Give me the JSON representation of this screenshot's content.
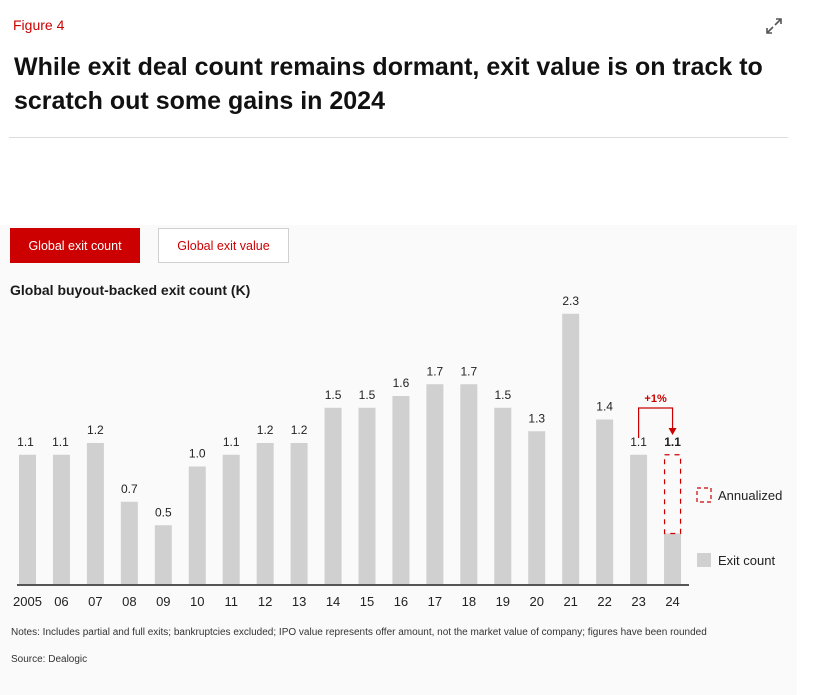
{
  "figure_label": "Figure 4",
  "title": "While exit deal count remains dormant, exit value is on track to scratch out some gains in 2024",
  "tabs": [
    {
      "label": "Global exit count",
      "active": true
    },
    {
      "label": "Global exit value",
      "active": false
    }
  ],
  "icons": {
    "expand": "expand-arrows-icon"
  },
  "colors": {
    "accent": "#cc0000",
    "bar": "#d0d0d0",
    "axis": "#555555"
  },
  "chart_data": {
    "type": "bar",
    "title": "Global buyout-backed exit count (K)",
    "xlabel": "",
    "ylabel": "",
    "ylim": [
      0,
      2.45
    ],
    "grid": false,
    "legend_position": "right",
    "categories": [
      "2005",
      "06",
      "07",
      "08",
      "09",
      "10",
      "11",
      "12",
      "13",
      "14",
      "15",
      "16",
      "17",
      "18",
      "19",
      "20",
      "21",
      "22",
      "23",
      "24"
    ],
    "series": [
      {
        "name": "Exit count",
        "values": [
          1.1,
          1.1,
          1.2,
          0.7,
          0.5,
          1.0,
          1.1,
          1.2,
          1.2,
          1.5,
          1.5,
          1.6,
          1.7,
          1.7,
          1.5,
          1.3,
          2.3,
          1.4,
          1.1,
          0.43
        ]
      },
      {
        "name": "Annualized",
        "values": [
          null,
          null,
          null,
          null,
          null,
          null,
          null,
          null,
          null,
          null,
          null,
          null,
          null,
          null,
          null,
          null,
          null,
          null,
          null,
          1.1
        ]
      }
    ],
    "data_labels": [
      "1.1",
      "1.1",
      "1.2",
      "0.7",
      "0.5",
      "1.0",
      "1.1",
      "1.2",
      "1.2",
      "1.5",
      "1.5",
      "1.6",
      "1.7",
      "1.7",
      "1.5",
      "1.3",
      "2.3",
      "1.4",
      "1.1",
      "1.1"
    ],
    "annotations": [
      {
        "text": "+1%",
        "from": "23",
        "to": "24"
      }
    ]
  },
  "notes": "Notes: Includes partial and full exits; bankruptcies excluded; IPO value represents offer amount, not the market value of company; figures have been rounded",
  "source": "Source: Dealogic"
}
